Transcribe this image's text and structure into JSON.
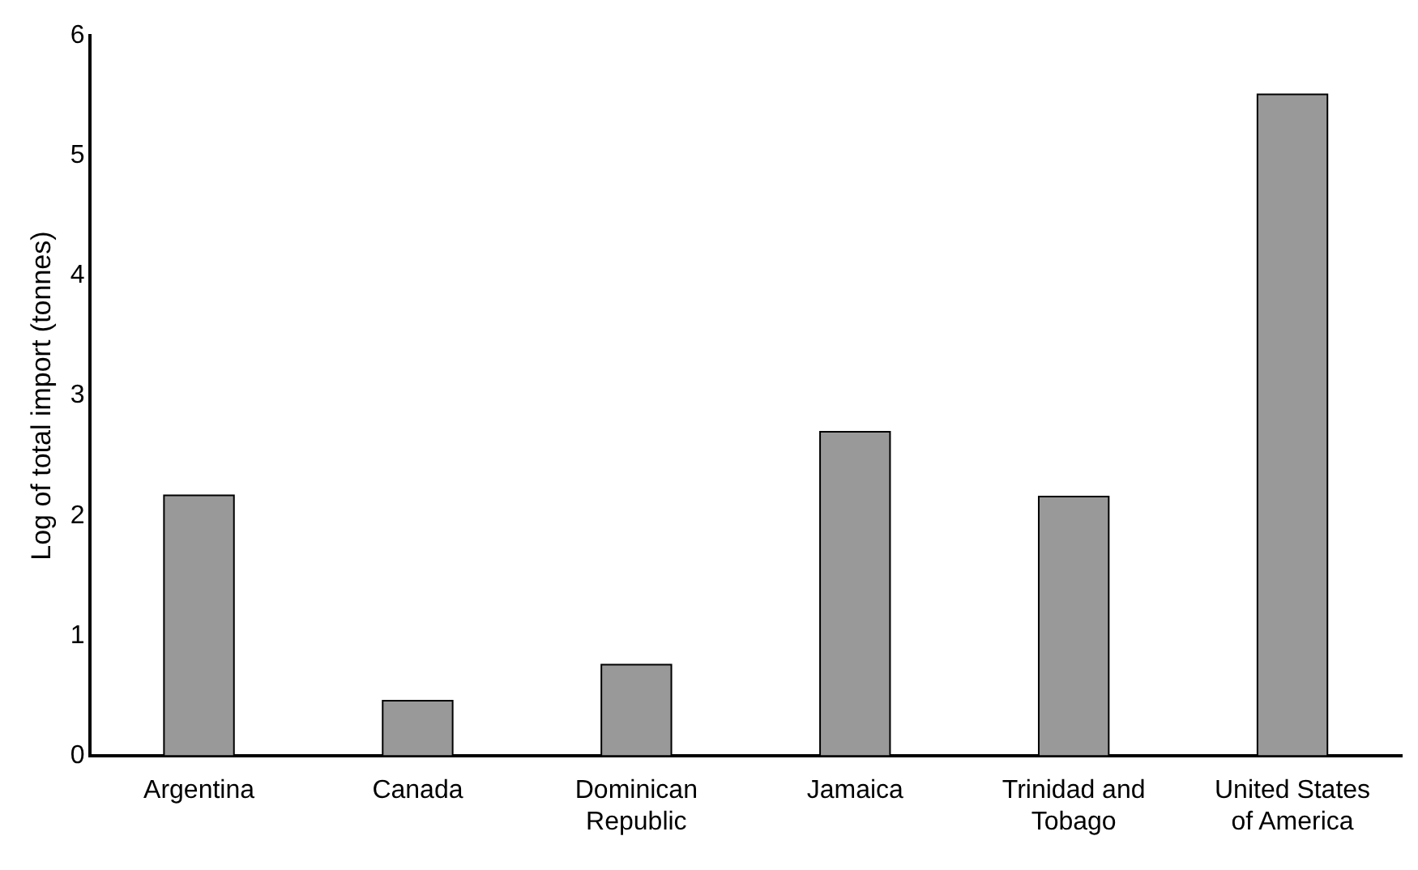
{
  "chart_data": {
    "type": "bar",
    "ylabel": "Log of total import (tonnes)",
    "categories": [
      "Argentina",
      "Canada",
      "Dominican Republic",
      "Jamaica",
      "Trinidad and Tobago",
      "United States of America"
    ],
    "values": [
      2.17,
      0.46,
      0.76,
      2.7,
      2.16,
      5.51
    ],
    "color": "#999999",
    "ylim": [
      0,
      6
    ],
    "yticks": [
      0,
      1,
      2,
      3,
      4,
      5,
      6
    ],
    "grid": false,
    "legend": false
  }
}
